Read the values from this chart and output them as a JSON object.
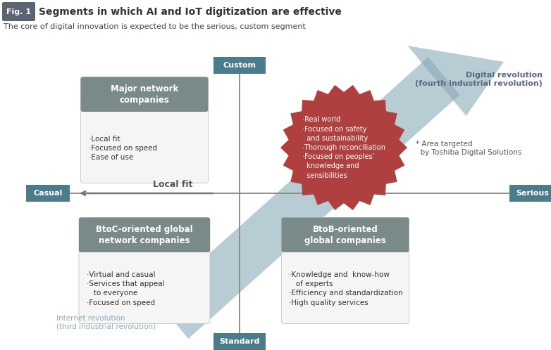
{
  "title_fig": "Fig. 1",
  "title_main": "Segments in which AI and IoT digitization are effective",
  "subtitle": "The core of digital innovation is expected to be the serious, custom segment",
  "bg_color": "#ffffff",
  "fig_badge_color": "#5a6472",
  "axis_label_bg": "#4a7a8a",
  "axis_labels": {
    "top": "Custom",
    "bottom": "Standard",
    "left": "Casual",
    "right": "Serious"
  },
  "box_header_color": "#7a8a88",
  "box_body_color": "#f5f5f5",
  "circle_color": "#b04040",
  "circle_text": "·Real world\n·Focused on safety\n  and sustainability\n·Thorough reconciliation\n·Focused on peoples'\n  knowledge and\n  sensibilities",
  "digital_rev_text": "Digital revolution\n(fourth industrial revolution)",
  "internet_rev_text": "Internet revolution\n(third industrial revolution)",
  "area_targeted_text": "* Area targeted\n  by Toshiba Digital Solutions",
  "local_fit_label": "Local fit",
  "major_network_title": "Major network\ncompanies",
  "major_network_body": "·Local fit\n·Focused on speed\n·Ease of use",
  "btoc_title": "BtoC-oriented global\nnetwork companies",
  "btoc_body": "·Virtual and casual\n·Services that appeal\n   to everyone\n·Focused on speed",
  "btob_title": "BtoB-oriented\nglobal companies",
  "btob_body": "·Knowledge and  know-how\n   of experts\n·Efficiency and standardization\n·High quality services",
  "arrow_color": "#8aaab8"
}
